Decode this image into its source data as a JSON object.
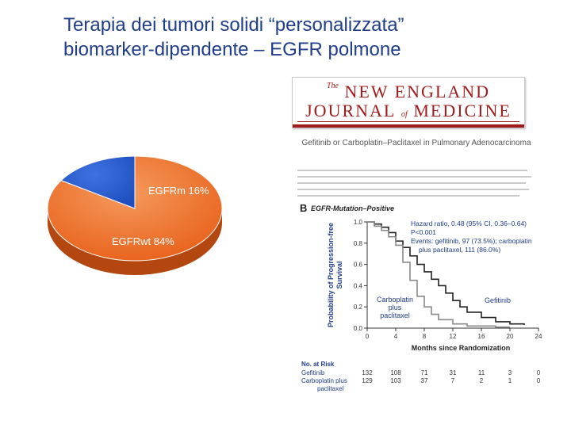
{
  "slide": {
    "title_line1": "Terapia dei tumori solidi “personalizzata”",
    "title_line2": "biomarker-dipendente – EGFR polmone"
  },
  "journal": {
    "name_the": "The",
    "name_line1": "NEW ENGLAND",
    "name_journal": "JOURNAL",
    "name_of": "of",
    "name_medicine": "MEDICINE",
    "article_title": "Gefitinib or Carboplatin–Paclitaxel in Pulmonary Adenocarcinoma"
  },
  "colors": {
    "title": "#1f3d8a",
    "pie_mutant": "#1f4fbf",
    "pie_wildtype": "#e8611a",
    "gefitinib_line": "#222222",
    "carbo_line": "#8a8a8a",
    "annotation": "#1f3d8a"
  },
  "chart_data": [
    {
      "type": "pie",
      "slices": [
        {
          "label": "EGFRm 16%",
          "value": 16
        },
        {
          "label": "EGFRwt 84%",
          "value": 84
        }
      ]
    },
    {
      "type": "line",
      "panel_label": "B",
      "title": "EGFR-Mutation–Positive",
      "xlabel": "Months since Randomization",
      "ylabel": "Probability of Progression-free Survival",
      "xlim": [
        0,
        24
      ],
      "ylim": [
        0,
        1.0
      ],
      "xticks": [
        0,
        4,
        8,
        12,
        16,
        20,
        24
      ],
      "yticks": [
        "0.0",
        "0.2",
        "0.4",
        "0.6",
        "0.8",
        "1.0"
      ],
      "annotations": {
        "hazard": "Hazard ratio, 0.48 (95% CI, 0.36–0.64)",
        "p": "P<0.001",
        "events1": "Events: gefitinib, 97 (73.5%); carboplatin",
        "events2": "plus paclitaxel, 111 (86.0%)"
      },
      "series": [
        {
          "name": "Gefitinib",
          "x": [
            0,
            1,
            2,
            3,
            4,
            5,
            6,
            7,
            8,
            9,
            10,
            11,
            12,
            13,
            14,
            16,
            18,
            20,
            22
          ],
          "y": [
            1.0,
            0.98,
            0.95,
            0.9,
            0.82,
            0.76,
            0.68,
            0.6,
            0.53,
            0.46,
            0.4,
            0.33,
            0.26,
            0.2,
            0.15,
            0.1,
            0.06,
            0.04,
            0.03
          ]
        },
        {
          "name": "Carboplatin plus paclitaxel",
          "x": [
            0,
            1,
            2,
            3,
            4,
            5,
            6,
            7,
            8,
            9,
            10,
            12,
            14,
            16,
            18,
            20
          ],
          "y": [
            1.0,
            0.96,
            0.92,
            0.86,
            0.78,
            0.62,
            0.45,
            0.3,
            0.2,
            0.13,
            0.08,
            0.04,
            0.02,
            0.02,
            0.01,
            0.01
          ]
        }
      ],
      "curve_labels": {
        "gefitinib": "Gefitinib",
        "carbo1": "Carboplatin",
        "carbo2": "plus",
        "carbo3": "paclitaxel"
      },
      "risk_table": {
        "heading": "No. at Risk",
        "columns": [
          0,
          4,
          8,
          12,
          16,
          20,
          24
        ],
        "rows": [
          {
            "name": "Gefitinib",
            "values": [
              "132",
              "108",
              "71",
              "31",
              "11",
              "3",
              "0"
            ]
          },
          {
            "name": "Carboplatin plus",
            "name2": "paclitaxel",
            "values": [
              "129",
              "103",
              "37",
              "7",
              "2",
              "1",
              "0"
            ]
          }
        ]
      }
    }
  ]
}
